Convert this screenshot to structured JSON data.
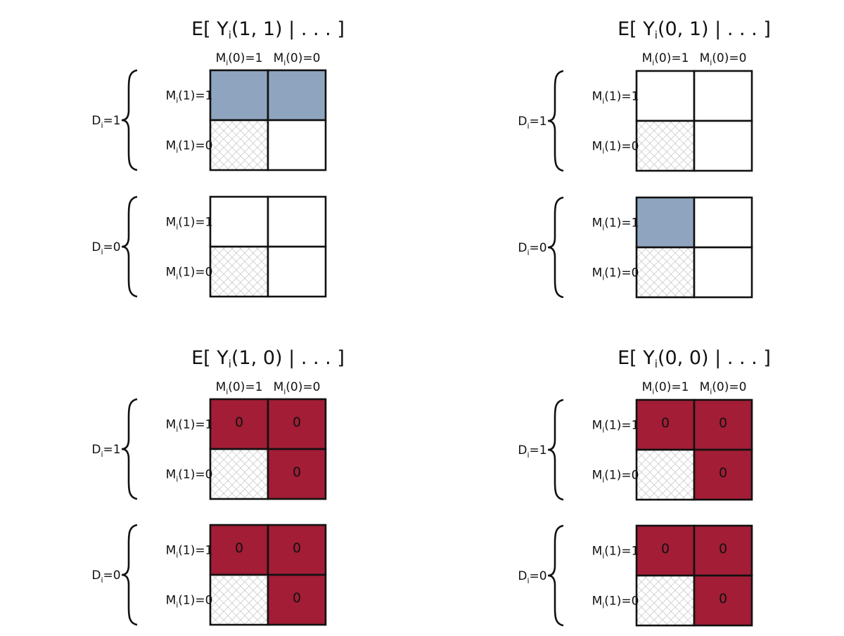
{
  "labels": {
    "col_headers": [
      {
        "main": "M",
        "sub": "i",
        "rest": "(0)=1"
      },
      {
        "main": "M",
        "sub": "i",
        "rest": "(0)=0"
      }
    ],
    "row_labels": [
      {
        "main": "M",
        "sub": "i",
        "rest": "(1)=1"
      },
      {
        "main": "M",
        "sub": "i",
        "rest": "(1)=0"
      }
    ],
    "groups": [
      {
        "main": "D",
        "sub": "i",
        "rest": "=1"
      },
      {
        "main": "D",
        "sub": "i",
        "rest": "=0"
      }
    ],
    "zero": "0"
  },
  "colors": {
    "blue": "#8fa5bf",
    "red": "#a21d35",
    "white": "#ffffff",
    "hatch": "#cccccc"
  },
  "panels": [
    {
      "title": {
        "pre": "E[ Y",
        "sub": "i",
        "post": "(1, 1) | . . . ]"
      },
      "groups": [
        {
          "cells": [
            "blue",
            "blue",
            "hatch",
            "white"
          ],
          "zeros": [
            false,
            false,
            false,
            false
          ]
        },
        {
          "cells": [
            "white",
            "white",
            "hatch",
            "white"
          ],
          "zeros": [
            false,
            false,
            false,
            false
          ]
        }
      ]
    },
    {
      "title": {
        "pre": "E[ Y",
        "sub": "i",
        "post": "(0, 1) | . . . ]"
      },
      "groups": [
        {
          "cells": [
            "white",
            "white",
            "hatch",
            "white"
          ],
          "zeros": [
            false,
            false,
            false,
            false
          ]
        },
        {
          "cells": [
            "blue",
            "white",
            "hatch",
            "white"
          ],
          "zeros": [
            false,
            false,
            false,
            false
          ]
        }
      ]
    },
    {
      "title": {
        "pre": "E[ Y",
        "sub": "i",
        "post": "(1, 0) | . . . ]"
      },
      "groups": [
        {
          "cells": [
            "red",
            "red",
            "hatch",
            "red"
          ],
          "zeros": [
            true,
            true,
            false,
            true
          ]
        },
        {
          "cells": [
            "red",
            "red",
            "hatch",
            "red"
          ],
          "zeros": [
            true,
            true,
            false,
            true
          ]
        }
      ]
    },
    {
      "title": {
        "pre": "E[ Y",
        "sub": "i",
        "post": "(0, 0) | . . . ]"
      },
      "groups": [
        {
          "cells": [
            "red",
            "red",
            "hatch",
            "red"
          ],
          "zeros": [
            true,
            true,
            false,
            true
          ]
        },
        {
          "cells": [
            "red",
            "red",
            "hatch",
            "red"
          ],
          "zeros": [
            true,
            true,
            false,
            true
          ]
        }
      ]
    }
  ]
}
